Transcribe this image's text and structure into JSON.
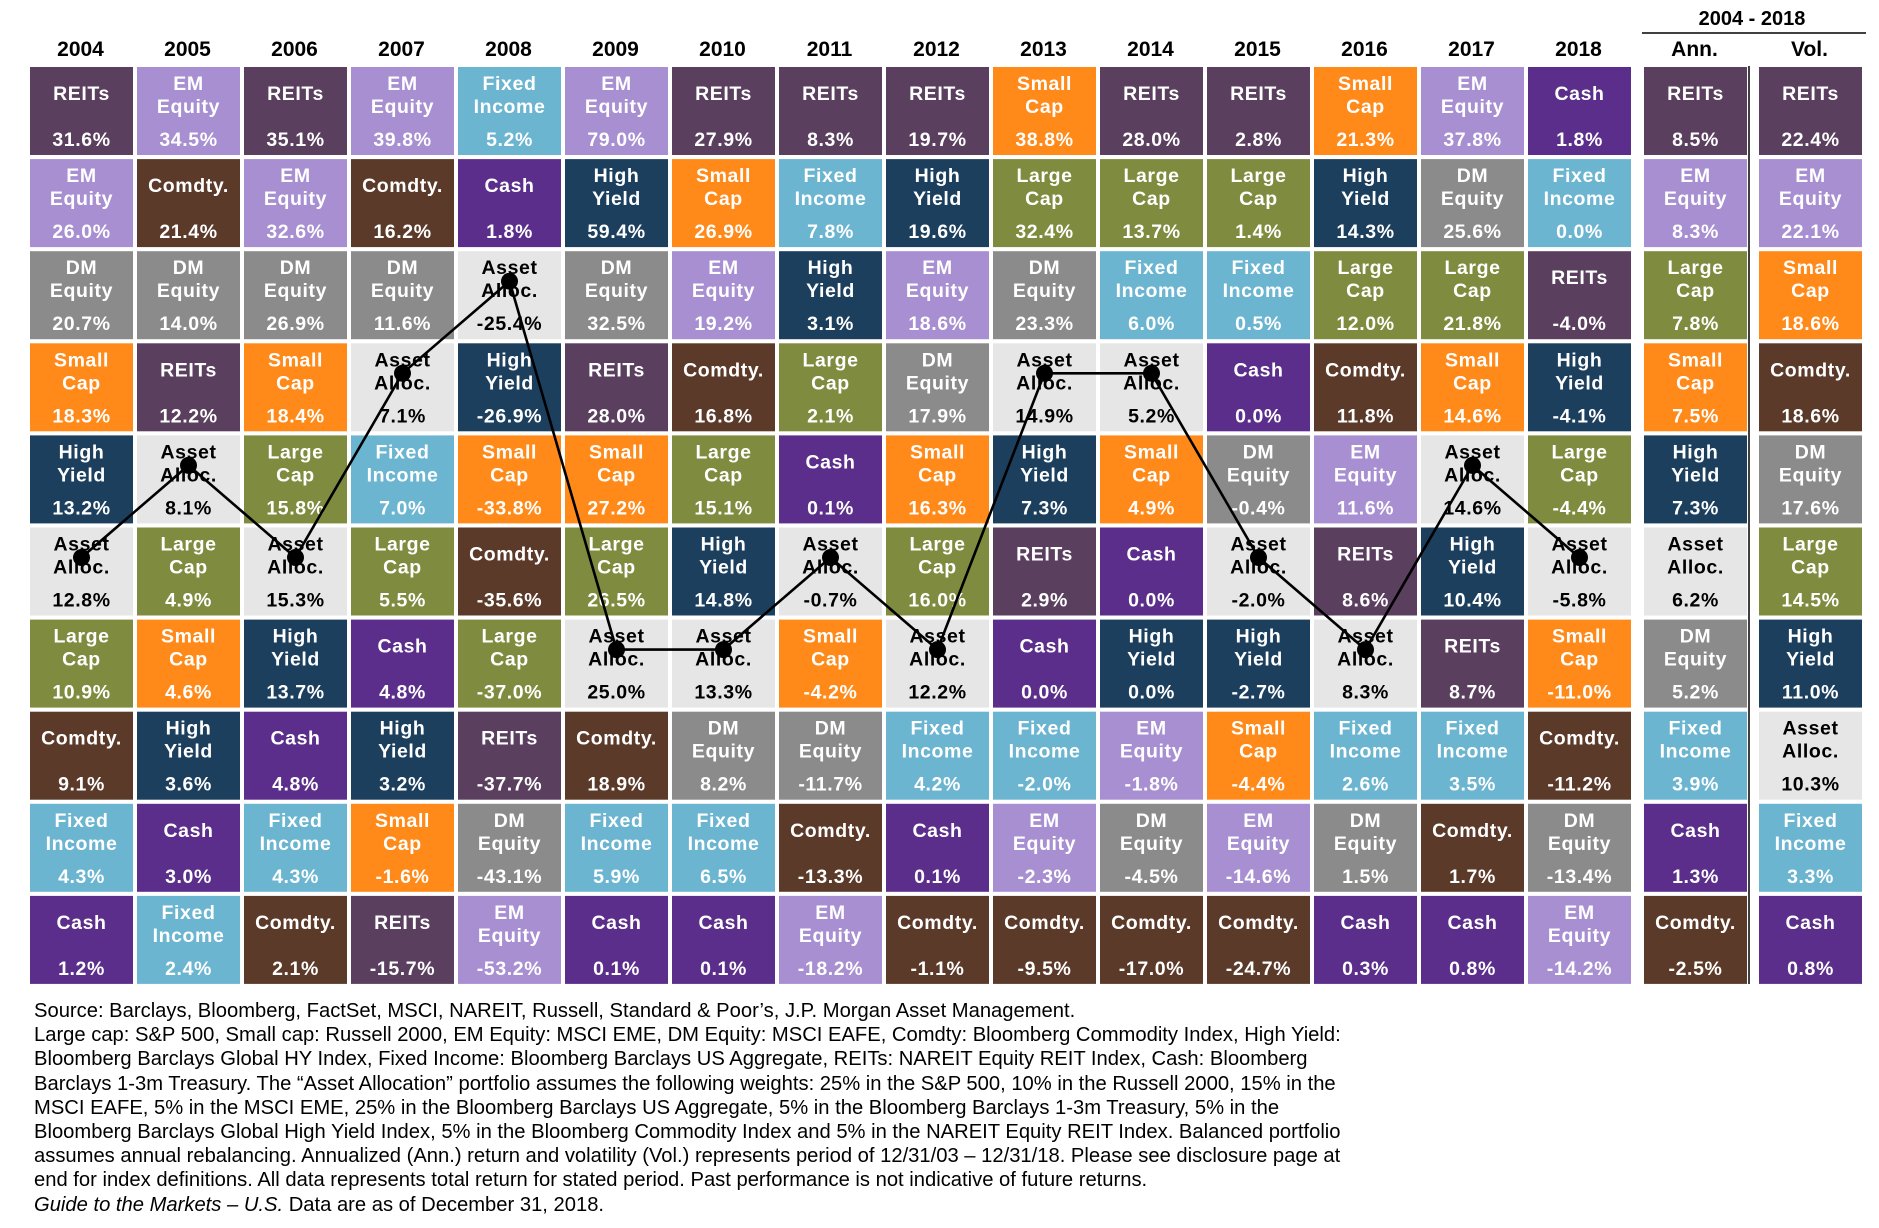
{
  "chart_data": {
    "type": "table",
    "title": "",
    "columns": [
      "2004",
      "2005",
      "2006",
      "2007",
      "2008",
      "2009",
      "2010",
      "2011",
      "2012",
      "2013",
      "2014",
      "2015",
      "2016",
      "2017",
      "2018"
    ],
    "summary_header": "2004 - 2018",
    "summary_columns": [
      "Ann.",
      "Vol."
    ],
    "colors": {
      "REITs": "#5a3f5e",
      "EM Equity": "#a78fd1",
      "DM Equity": "#8b8b8b",
      "Small Cap": "#ff8a1a",
      "High Yield": "#1c3f5e",
      "Asset Alloc.": "#e6e6e6",
      "Large Cap": "#7f8b3e",
      "Comdty.": "#5b3a2a",
      "Fixed Income": "#6bb5d1",
      "Cash": "#5a2e8a"
    },
    "grid": [
      [
        [
          "REITs",
          "31.6%"
        ],
        [
          "EM Equity",
          "34.5%"
        ],
        [
          "REITs",
          "35.1%"
        ],
        [
          "EM Equity",
          "39.8%"
        ],
        [
          "Fixed Income",
          "5.2%"
        ],
        [
          "EM Equity",
          "79.0%"
        ],
        [
          "REITs",
          "27.9%"
        ],
        [
          "REITs",
          "8.3%"
        ],
        [
          "REITs",
          "19.7%"
        ],
        [
          "Small Cap",
          "38.8%"
        ],
        [
          "REITs",
          "28.0%"
        ],
        [
          "REITs",
          "2.8%"
        ],
        [
          "Small Cap",
          "21.3%"
        ],
        [
          "EM Equity",
          "37.8%"
        ],
        [
          "Cash",
          "1.8%"
        ],
        [
          "REITs",
          "8.5%"
        ],
        [
          "REITs",
          "22.4%"
        ]
      ],
      [
        [
          "EM Equity",
          "26.0%"
        ],
        [
          "Comdty.",
          "21.4%"
        ],
        [
          "EM Equity",
          "32.6%"
        ],
        [
          "Comdty.",
          "16.2%"
        ],
        [
          "Cash",
          "1.8%"
        ],
        [
          "High Yield",
          "59.4%"
        ],
        [
          "Small Cap",
          "26.9%"
        ],
        [
          "Fixed Income",
          "7.8%"
        ],
        [
          "High Yield",
          "19.6%"
        ],
        [
          "Large Cap",
          "32.4%"
        ],
        [
          "Large Cap",
          "13.7%"
        ],
        [
          "Large Cap",
          "1.4%"
        ],
        [
          "High Yield",
          "14.3%"
        ],
        [
          "DM Equity",
          "25.6%"
        ],
        [
          "Fixed Income",
          "0.0%"
        ],
        [
          "EM Equity",
          "8.3%"
        ],
        [
          "EM Equity",
          "22.1%"
        ]
      ],
      [
        [
          "DM Equity",
          "20.7%"
        ],
        [
          "DM Equity",
          "14.0%"
        ],
        [
          "DM Equity",
          "26.9%"
        ],
        [
          "DM Equity",
          "11.6%"
        ],
        [
          "Asset Alloc.",
          "-25.4%"
        ],
        [
          "DM Equity",
          "32.5%"
        ],
        [
          "EM Equity",
          "19.2%"
        ],
        [
          "High Yield",
          "3.1%"
        ],
        [
          "EM Equity",
          "18.6%"
        ],
        [
          "DM Equity",
          "23.3%"
        ],
        [
          "Fixed Income",
          "6.0%"
        ],
        [
          "Fixed Income",
          "0.5%"
        ],
        [
          "Large Cap",
          "12.0%"
        ],
        [
          "Large Cap",
          "21.8%"
        ],
        [
          "REITs",
          "-4.0%"
        ],
        [
          "Large Cap",
          "7.8%"
        ],
        [
          "Small Cap",
          "18.6%"
        ]
      ],
      [
        [
          "Small Cap",
          "18.3%"
        ],
        [
          "REITs",
          "12.2%"
        ],
        [
          "Small Cap",
          "18.4%"
        ],
        [
          "Asset Alloc.",
          "7.1%"
        ],
        [
          "High Yield",
          "-26.9%"
        ],
        [
          "REITs",
          "28.0%"
        ],
        [
          "Comdty.",
          "16.8%"
        ],
        [
          "Large Cap",
          "2.1%"
        ],
        [
          "DM Equity",
          "17.9%"
        ],
        [
          "Asset Alloc.",
          "14.9%"
        ],
        [
          "Asset Alloc.",
          "5.2%"
        ],
        [
          "Cash",
          "0.0%"
        ],
        [
          "Comdty.",
          "11.8%"
        ],
        [
          "Small Cap",
          "14.6%"
        ],
        [
          "High Yield",
          "-4.1%"
        ],
        [
          "Small Cap",
          "7.5%"
        ],
        [
          "Comdty.",
          "18.6%"
        ]
      ],
      [
        [
          "High Yield",
          "13.2%"
        ],
        [
          "Asset Alloc.",
          "8.1%"
        ],
        [
          "Large Cap",
          "15.8%"
        ],
        [
          "Fixed Income",
          "7.0%"
        ],
        [
          "Small Cap",
          "-33.8%"
        ],
        [
          "Small Cap",
          "27.2%"
        ],
        [
          "Large Cap",
          "15.1%"
        ],
        [
          "Cash",
          "0.1%"
        ],
        [
          "Small Cap",
          "16.3%"
        ],
        [
          "High Yield",
          "7.3%"
        ],
        [
          "Small Cap",
          "4.9%"
        ],
        [
          "DM Equity",
          "-0.4%"
        ],
        [
          "EM Equity",
          "11.6%"
        ],
        [
          "Asset Alloc.",
          "14.6%"
        ],
        [
          "Large Cap",
          "-4.4%"
        ],
        [
          "High Yield",
          "7.3%"
        ],
        [
          "DM Equity",
          "17.6%"
        ]
      ],
      [
        [
          "Asset Alloc.",
          "12.8%"
        ],
        [
          "Large Cap",
          "4.9%"
        ],
        [
          "Asset Alloc.",
          "15.3%"
        ],
        [
          "Large Cap",
          "5.5%"
        ],
        [
          "Comdty.",
          "-35.6%"
        ],
        [
          "Large Cap",
          "26.5%"
        ],
        [
          "High Yield",
          "14.8%"
        ],
        [
          "Asset Alloc.",
          "-0.7%"
        ],
        [
          "Large Cap",
          "16.0%"
        ],
        [
          "REITs",
          "2.9%"
        ],
        [
          "Cash",
          "0.0%"
        ],
        [
          "Asset Alloc.",
          "-2.0%"
        ],
        [
          "REITs",
          "8.6%"
        ],
        [
          "High Yield",
          "10.4%"
        ],
        [
          "Asset Alloc.",
          "-5.8%"
        ],
        [
          "Asset Alloc.",
          "6.2%"
        ],
        [
          "Large Cap",
          "14.5%"
        ]
      ],
      [
        [
          "Large Cap",
          "10.9%"
        ],
        [
          "Small Cap",
          "4.6%"
        ],
        [
          "High Yield",
          "13.7%"
        ],
        [
          "Cash",
          "4.8%"
        ],
        [
          "Large Cap",
          "-37.0%"
        ],
        [
          "Asset Alloc.",
          "25.0%"
        ],
        [
          "Asset Alloc.",
          "13.3%"
        ],
        [
          "Small Cap",
          "-4.2%"
        ],
        [
          "Asset Alloc.",
          "12.2%"
        ],
        [
          "Cash",
          "0.0%"
        ],
        [
          "High Yield",
          "0.0%"
        ],
        [
          "High Yield",
          "-2.7%"
        ],
        [
          "Asset Alloc.",
          "8.3%"
        ],
        [
          "REITs",
          "8.7%"
        ],
        [
          "Small Cap",
          "-11.0%"
        ],
        [
          "DM Equity",
          "5.2%"
        ],
        [
          "High Yield",
          "11.0%"
        ]
      ],
      [
        [
          "Comdty.",
          "9.1%"
        ],
        [
          "High Yield",
          "3.6%"
        ],
        [
          "Cash",
          "4.8%"
        ],
        [
          "High Yield",
          "3.2%"
        ],
        [
          "REITs",
          "-37.7%"
        ],
        [
          "Comdty.",
          "18.9%"
        ],
        [
          "DM Equity",
          "8.2%"
        ],
        [
          "DM Equity",
          "-11.7%"
        ],
        [
          "Fixed Income",
          "4.2%"
        ],
        [
          "Fixed Income",
          "-2.0%"
        ],
        [
          "EM Equity",
          "-1.8%"
        ],
        [
          "Small Cap",
          "-4.4%"
        ],
        [
          "Fixed Income",
          "2.6%"
        ],
        [
          "Fixed Income",
          "3.5%"
        ],
        [
          "Comdty.",
          "-11.2%"
        ],
        [
          "Fixed Income",
          "3.9%"
        ],
        [
          "Asset Alloc.",
          "10.3%"
        ]
      ],
      [
        [
          "Fixed Income",
          "4.3%"
        ],
        [
          "Cash",
          "3.0%"
        ],
        [
          "Fixed Income",
          "4.3%"
        ],
        [
          "Small Cap",
          "-1.6%"
        ],
        [
          "DM Equity",
          "-43.1%"
        ],
        [
          "Fixed Income",
          "5.9%"
        ],
        [
          "Fixed Income",
          "6.5%"
        ],
        [
          "Comdty.",
          "-13.3%"
        ],
        [
          "Cash",
          "0.1%"
        ],
        [
          "EM Equity",
          "-2.3%"
        ],
        [
          "DM Equity",
          "-4.5%"
        ],
        [
          "EM Equity",
          "-14.6%"
        ],
        [
          "DM Equity",
          "1.5%"
        ],
        [
          "Comdty.",
          "1.7%"
        ],
        [
          "DM Equity",
          "-13.4%"
        ],
        [
          "Cash",
          "1.3%"
        ],
        [
          "Fixed Income",
          "3.3%"
        ]
      ],
      [
        [
          "Cash",
          "1.2%"
        ],
        [
          "Fixed Income",
          "2.4%"
        ],
        [
          "Comdty.",
          "2.1%"
        ],
        [
          "REITs",
          "-15.7%"
        ],
        [
          "EM Equity",
          "-53.2%"
        ],
        [
          "Cash",
          "0.1%"
        ],
        [
          "Cash",
          "0.1%"
        ],
        [
          "EM Equity",
          "-18.2%"
        ],
        [
          "Comdty.",
          "-1.1%"
        ],
        [
          "Comdty.",
          "-9.5%"
        ],
        [
          "Comdty.",
          "-17.0%"
        ],
        [
          "Comdty.",
          "-24.7%"
        ],
        [
          "Cash",
          "0.3%"
        ],
        [
          "Cash",
          "0.8%"
        ],
        [
          "EM Equity",
          "-14.2%"
        ],
        [
          "Comdty.",
          "-2.5%"
        ],
        [
          "Cash",
          "0.8%"
        ]
      ]
    ]
  },
  "footnotes": {
    "line1": "Source: Barclays, Bloomberg, FactSet, MSCI, NAREIT, Russell, Standard & Poor’s, J.P. Morgan Asset Management.",
    "line2": "Large cap: S&P 500, Small cap: Russell 2000, EM Equity: MSCI EME, DM Equity: MSCI EAFE, Comdty: Bloomberg Commodity Index, High Yield:",
    "line3": "Bloomberg Barclays Global HY Index, Fixed Income: Bloomberg Barclays US Aggregate, REITs: NAREIT Equity REIT Index, Cash: Bloomberg",
    "line4": "Barclays 1-3m Treasury. The “Asset Allocation” portfolio assumes the following weights: 25% in the S&P 500, 10% in the Russell 2000, 15% in the",
    "line5": "MSCI EAFE, 5% in the MSCI EME, 25% in the Bloomberg Barclays US Aggregate, 5% in the Bloomberg Barclays 1-3m Treasury, 5% in the",
    "line6": "Bloomberg Barclays Global High Yield Index, 5% in the Bloomberg Commodity Index and 5% in the NAREIT Equity REIT Index. Balanced portfolio",
    "line7": "assumes annual rebalancing. Annualized (Ann.) return and volatility (Vol.) represents period of 12/31/03 – 12/31/18. Please see disclosure page at",
    "line8": "end for index definitions. All data represents total return for stated period. Past performance is not indicative of future returns.",
    "line9_italic": "Guide to the Markets – U.S.",
    "line9_rest": " Data are as of December 31, 2018."
  }
}
